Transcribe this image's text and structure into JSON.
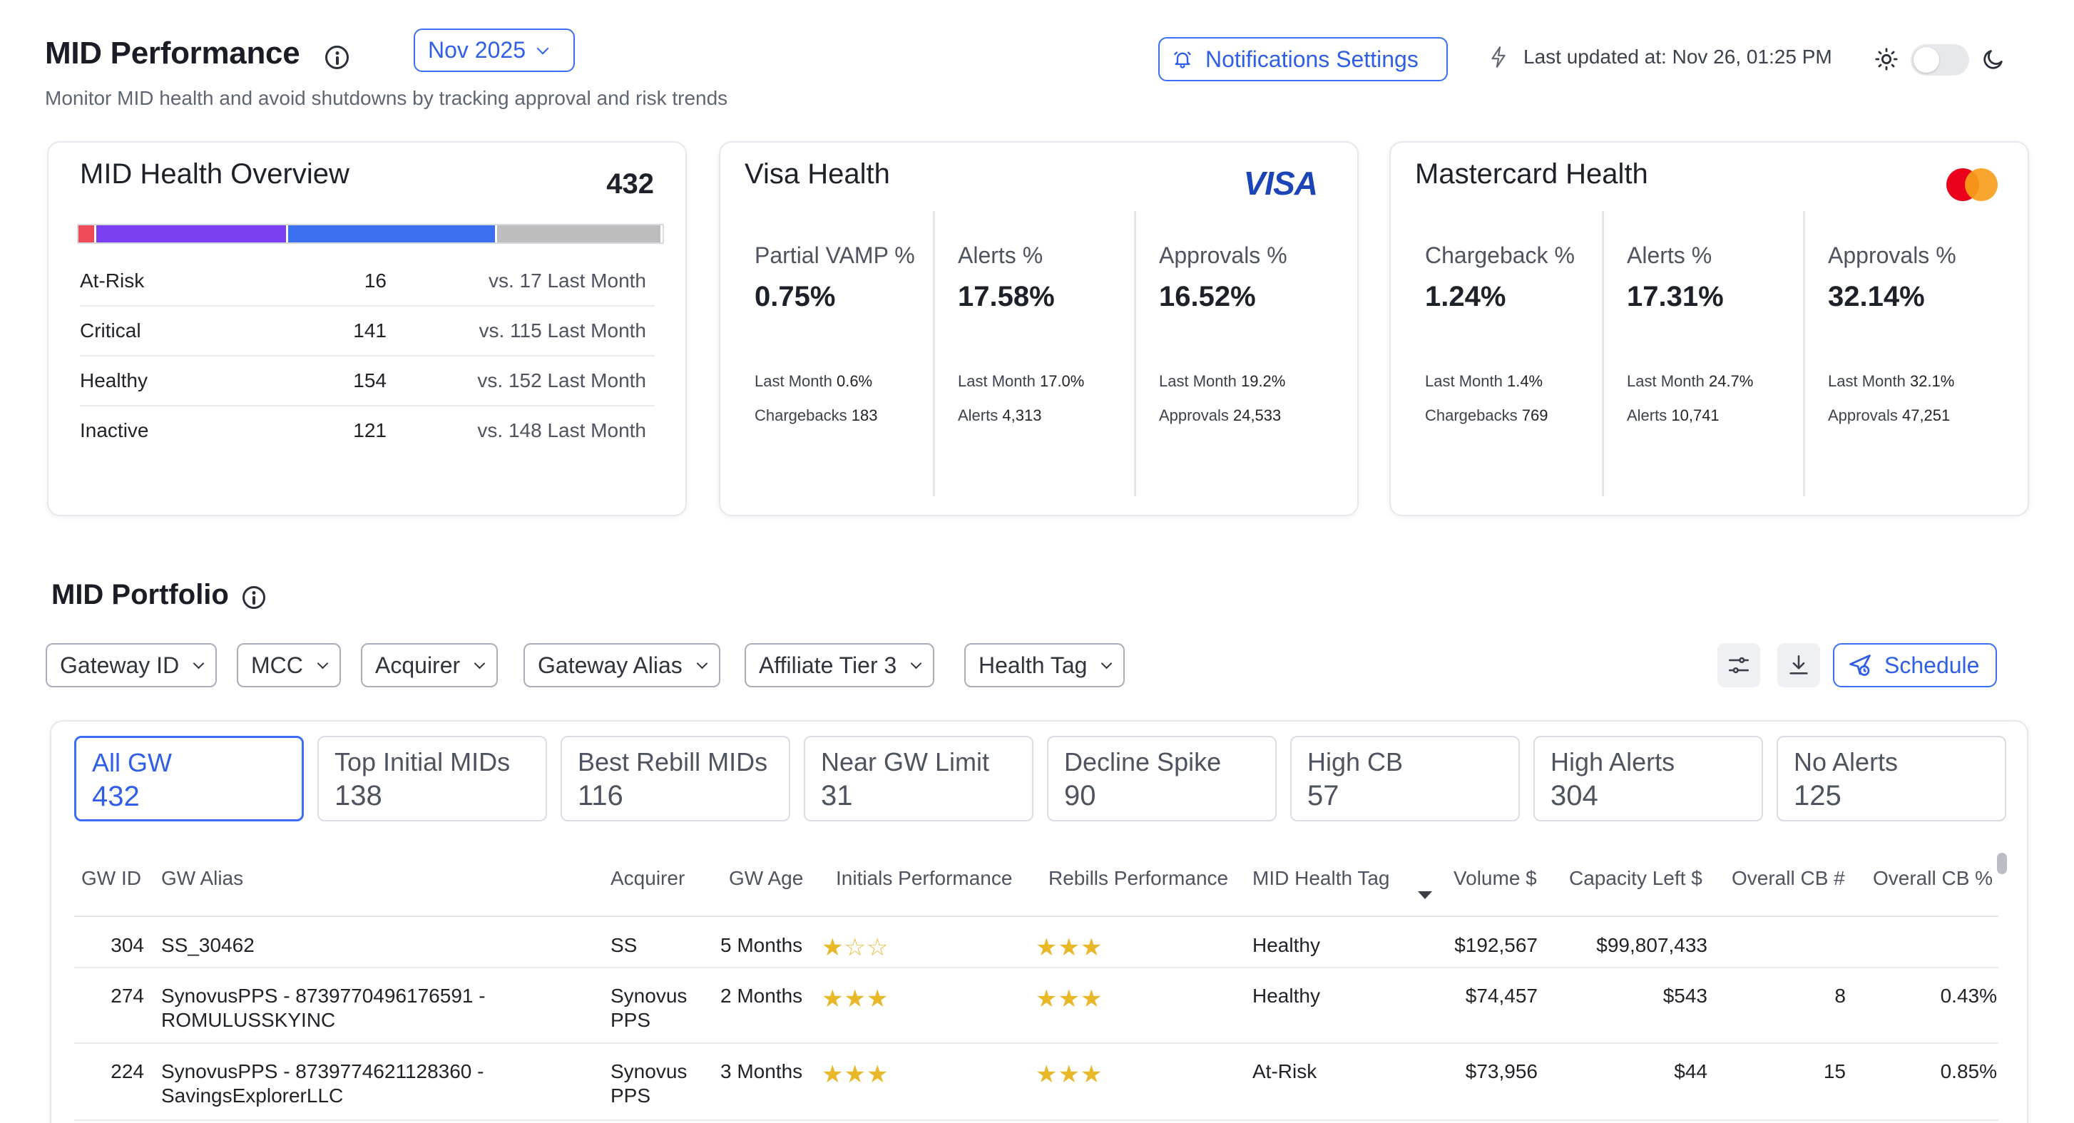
{
  "header": {
    "title": "MID Performance",
    "subtitle": "Monitor MID health and avoid shutdowns by tracking approval and risk trends",
    "month": "Nov 2025",
    "notifications_label": "Notifications Settings",
    "last_updated": "Last updated at: Nov 26, 01:25 PM",
    "dark_mode": false
  },
  "overview": {
    "title": "MID Health Overview",
    "total": "432",
    "rows": [
      {
        "label": "At-Risk",
        "count": "16",
        "compare": "vs. 17 Last Month"
      },
      {
        "label": "Critical",
        "count": "141",
        "compare": "vs. 115 Last Month"
      },
      {
        "label": "Healthy",
        "count": "154",
        "compare": "vs. 152 Last Month"
      },
      {
        "label": "Inactive",
        "count": "121",
        "compare": "vs. 148 Last Month"
      }
    ],
    "bar_colors": {
      "at_risk": "#ef4a5a",
      "critical": "#7a3ff0",
      "healthy": "#3d6ff0",
      "inactive": "#bdbdbd"
    }
  },
  "visa": {
    "title": "Visa Health",
    "logo_text": "VISA",
    "metrics": [
      {
        "label": "Partial VAMP %",
        "value": "0.75%",
        "sub1_label": "Last Month",
        "sub1_value": "0.6%",
        "sub2_label": "Chargebacks",
        "sub2_value": "183"
      },
      {
        "label": "Alerts %",
        "value": "17.58%",
        "sub1_label": "Last Month",
        "sub1_value": "17.0%",
        "sub2_label": "Alerts",
        "sub2_value": "4,313"
      },
      {
        "label": "Approvals %",
        "value": "16.52%",
        "sub1_label": "Last Month",
        "sub1_value": "19.2%",
        "sub2_label": "Approvals",
        "sub2_value": "24,533"
      }
    ]
  },
  "mastercard": {
    "title": "Mastercard Health",
    "metrics": [
      {
        "label": "Chargeback %",
        "value": "1.24%",
        "sub1_label": "Last Month",
        "sub1_value": "1.4%",
        "sub2_label": "Chargebacks",
        "sub2_value": "769"
      },
      {
        "label": "Alerts %",
        "value": "17.31%",
        "sub1_label": "Last Month",
        "sub1_value": "24.7%",
        "sub2_label": "Alerts",
        "sub2_value": "10,741"
      },
      {
        "label": "Approvals %",
        "value": "32.14%",
        "sub1_label": "Last Month",
        "sub1_value": "32.1%",
        "sub2_label": "Approvals",
        "sub2_value": "47,251"
      }
    ]
  },
  "portfolio": {
    "title": "MID Portfolio",
    "filters": [
      "Gateway ID",
      "MCC",
      "Acquirer",
      "Gateway Alias",
      "Affiliate Tier 3",
      "Health Tag"
    ],
    "schedule_label": "Schedule",
    "segments": [
      {
        "label": "All GW",
        "count": "432"
      },
      {
        "label": "Top Initial MIDs",
        "count": "138"
      },
      {
        "label": "Best Rebill MIDs",
        "count": "116"
      },
      {
        "label": "Near GW Limit",
        "count": "31"
      },
      {
        "label": "Decline Spike",
        "count": "90"
      },
      {
        "label": "High CB",
        "count": "57"
      },
      {
        "label": "High Alerts",
        "count": "304"
      },
      {
        "label": "No Alerts",
        "count": "125"
      }
    ],
    "columns": [
      "GW ID",
      "GW Alias",
      "Acquirer",
      "GW Age",
      "Initials Performance",
      "Rebills Performance",
      "MID Health Tag",
      "Volume $",
      "Capacity Left $",
      "Overall CB #",
      "Overall CB %"
    ],
    "rows": [
      {
        "gw_id": "304",
        "alias1": "SS_30462",
        "alias2": "",
        "acq1": "SS",
        "acq2": "",
        "age": "5 Months",
        "initials_stars": 1,
        "rebills_stars": 3,
        "tag": "Healthy",
        "volume": "$192,567",
        "capacity": "$99,807,433",
        "cb_count": "",
        "cb_pct": ""
      },
      {
        "gw_id": "274",
        "alias1": "SynovusPPS - 8739770496176591 -",
        "alias2": "ROMULUSSKYINC",
        "acq1": "Synovus",
        "acq2": "PPS",
        "age": "2 Months",
        "initials_stars": 3,
        "rebills_stars": 3,
        "tag": "Healthy",
        "volume": "$74,457",
        "capacity": "$543",
        "cb_count": "8",
        "cb_pct": "0.43%"
      },
      {
        "gw_id": "224",
        "alias1": "SynovusPPS - 8739774621128360 -",
        "alias2": "SavingsExplorerLLC",
        "acq1": "Synovus",
        "acq2": "PPS",
        "age": "3 Months",
        "initials_stars": 3,
        "rebills_stars": 3,
        "tag": "At-Risk",
        "volume": "$73,956",
        "capacity": "$44",
        "cb_count": "15",
        "cb_pct": "0.85%"
      }
    ]
  },
  "colors": {
    "accent": "#3b6ef5",
    "star": "#e8b828",
    "visa": "#1a44b8",
    "mc_red": "#eb001b",
    "mc_orange": "#f79e1b"
  }
}
